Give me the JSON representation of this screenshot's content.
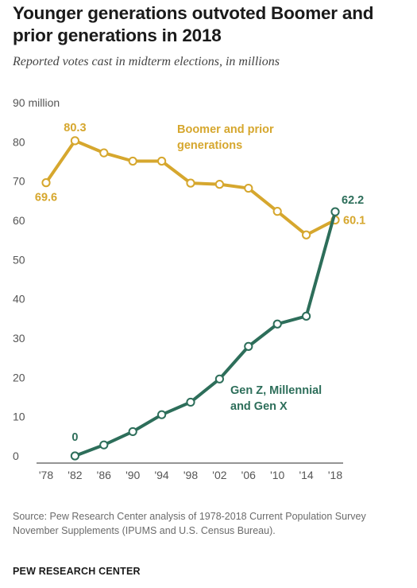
{
  "title": "Younger generations outvoted Boomer and prior generations in 2018",
  "subtitle": "Reported votes cast in midterm elections, in millions",
  "source": "Source: Pew Research Center analysis of 1978-2018 Current Population Survey November Supplements (IPUMS and U.S. Census Bureau).",
  "credit": "PEW RESEARCH CENTER",
  "colors": {
    "boomer": "#d6a72e",
    "genx": "#2d6e5a",
    "axis": "#555555",
    "grid_text": "#555555"
  },
  "chart_data": {
    "type": "line",
    "title": "Younger generations outvoted Boomer and prior generations in 2018",
    "subtitle": "Reported votes cast in midterm elections, in millions",
    "categories": [
      "'78",
      "'82",
      "'86",
      "'90",
      "'94",
      "'98",
      "'02",
      "'06",
      "'10",
      "'14",
      "'18"
    ],
    "x": [
      1978,
      1982,
      1986,
      1990,
      1994,
      1998,
      2002,
      2006,
      2010,
      2014,
      2018
    ],
    "ylim": [
      0,
      90
    ],
    "yticks": [
      0,
      10,
      20,
      30,
      40,
      50,
      60,
      70,
      80,
      90
    ],
    "ytick_labels": [
      "0",
      "10",
      "20",
      "30",
      "40",
      "50",
      "60",
      "70",
      "80",
      "90 million"
    ],
    "grid": false,
    "series": [
      {
        "name": "Boomer and prior generations",
        "label_lines": [
          "Boomer and prior",
          "generations"
        ],
        "color": "#d6a72e",
        "x": [
          1978,
          1982,
          1986,
          1990,
          1994,
          1998,
          2002,
          2006,
          2010,
          2014,
          2018
        ],
        "values": [
          69.6,
          80.3,
          77.2,
          75.1,
          75.1,
          69.5,
          69.2,
          68.2,
          62.3,
          56.3,
          60.1
        ],
        "data_labels": [
          {
            "x": 1978,
            "text": "69.6"
          },
          {
            "x": 1982,
            "text": "80.3"
          },
          {
            "x": 2018,
            "text": "60.1"
          }
        ]
      },
      {
        "name": "Gen Z, Millennial and Gen X",
        "label_lines": [
          "Gen Z, Millennial",
          "and Gen X"
        ],
        "color": "#2d6e5a",
        "x": [
          1982,
          1986,
          1990,
          1994,
          1998,
          2002,
          2006,
          2010,
          2014,
          2018
        ],
        "values": [
          0,
          2.8,
          6.2,
          10.5,
          13.7,
          19.6,
          27.9,
          33.6,
          35.6,
          62.2
        ],
        "data_labels": [
          {
            "x": 1982,
            "text": "0"
          },
          {
            "x": 2018,
            "text": "62.2"
          }
        ]
      }
    ]
  }
}
